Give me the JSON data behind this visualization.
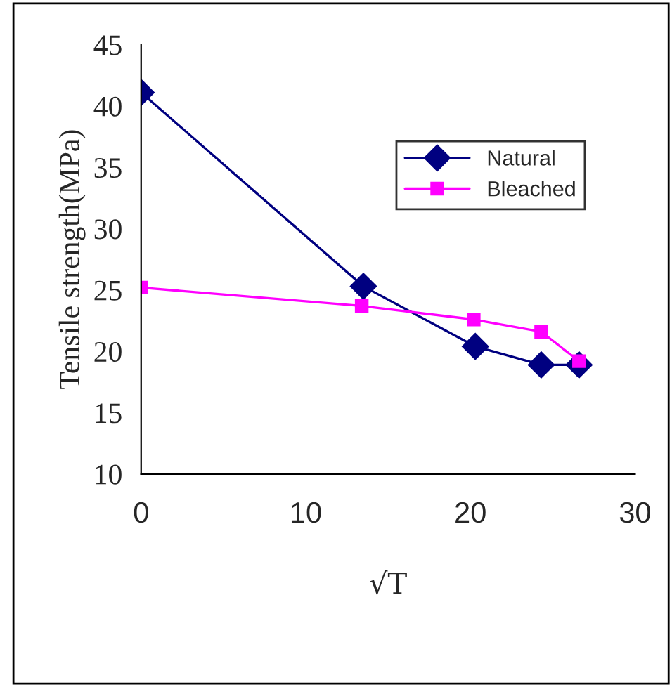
{
  "chart_data": {
    "type": "line",
    "xlabel": "√T",
    "ylabel": "Tensile strength(MPa)",
    "xlim": [
      0,
      30
    ],
    "xticks": [
      0,
      10,
      20,
      30
    ],
    "ylim": [
      10,
      45
    ],
    "yticks": [
      10,
      15,
      20,
      25,
      30,
      35,
      40,
      45
    ],
    "grid": false,
    "legend": "top right",
    "series": [
      {
        "name": "Natural",
        "color": "#000080",
        "marker": "diamond",
        "x": [
          0,
          13.5,
          20.3,
          24.3,
          26.6
        ],
        "values": [
          41.1,
          25.3,
          20.4,
          18.9,
          18.9
        ]
      },
      {
        "name": "Bleached",
        "color": "#ff00ff",
        "marker": "square",
        "x": [
          0,
          13.4,
          20.2,
          24.3,
          26.6
        ],
        "values": [
          25.2,
          23.7,
          22.6,
          21.6,
          19.2
        ]
      }
    ]
  }
}
